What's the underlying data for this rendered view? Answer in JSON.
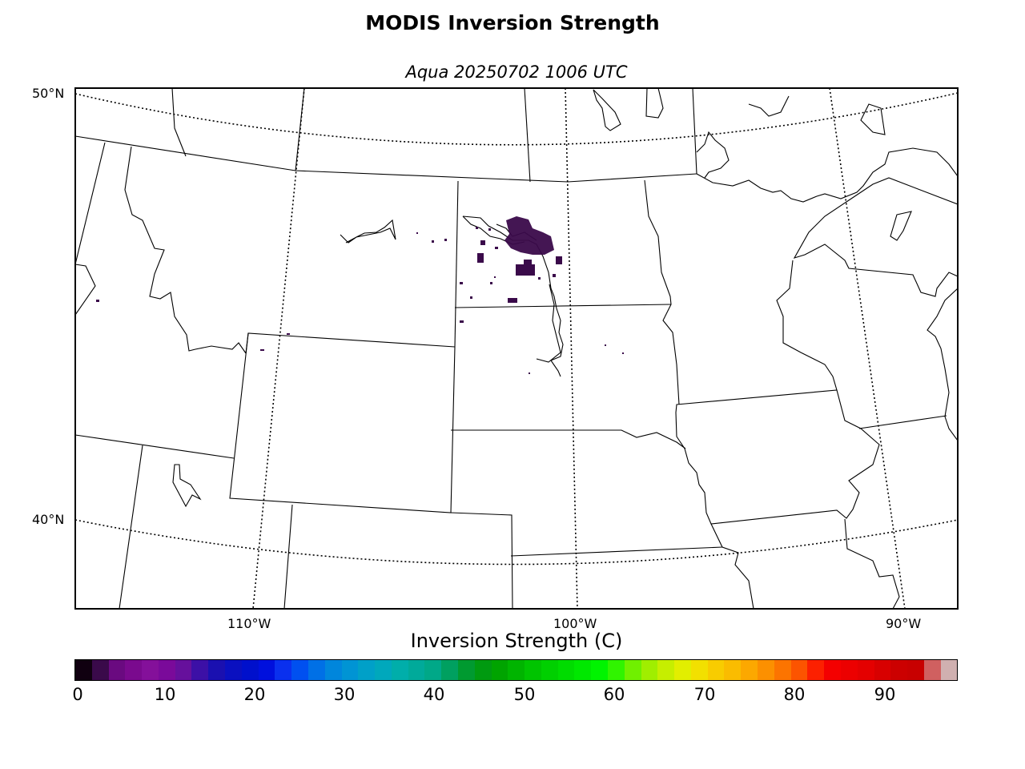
{
  "title": "MODIS Inversion Strength",
  "subtitle": "Aqua 20250702 1006 UTC",
  "map": {
    "latitude_labels": [
      "50°N",
      "40°N"
    ],
    "longitude_labels": [
      "110°W",
      "100°W",
      "90°W"
    ],
    "graticule_style": "dotted",
    "boundaries": "US states, Canadian provinces, coastlines and lakes",
    "data_color": "#3a0a4a",
    "data_region": "North Dakota / Montana border area"
  },
  "colorbar": {
    "title": "Inversion Strength (C)",
    "tick_labels": [
      "0",
      "10",
      "20",
      "30",
      "40",
      "50",
      "60",
      "70",
      "80",
      "90"
    ],
    "range": [
      0,
      98
    ],
    "colors": [
      "#100010",
      "#3a0a4a",
      "#6a0a80",
      "#7a0a8e",
      "#84109a",
      "#7a0a9a",
      "#66109c",
      "#3c10a6",
      "#1a10b0",
      "#0a10c0",
      "#0010cc",
      "#0010dd",
      "#0a30ee",
      "#0050f0",
      "#0070e6",
      "#0086dc",
      "#0094d4",
      "#00a0c8",
      "#00a8bc",
      "#00aeaa",
      "#00aa9a",
      "#00a888",
      "#00a060",
      "#009a30",
      "#009a10",
      "#00a400",
      "#00b400",
      "#00c400",
      "#00d000",
      "#00dc00",
      "#00e800",
      "#00f400",
      "#30f400",
      "#70f000",
      "#a0ee00",
      "#c6ee00",
      "#e2ee00",
      "#f2e000",
      "#f8cc00",
      "#fabc00",
      "#fca800",
      "#fc9000",
      "#fc7400",
      "#fc5400",
      "#fc2000",
      "#f40000",
      "#ec0000",
      "#e40000",
      "#d80000",
      "#cc0000",
      "#c80000",
      "#d06060",
      "#d0b0b0"
    ]
  }
}
